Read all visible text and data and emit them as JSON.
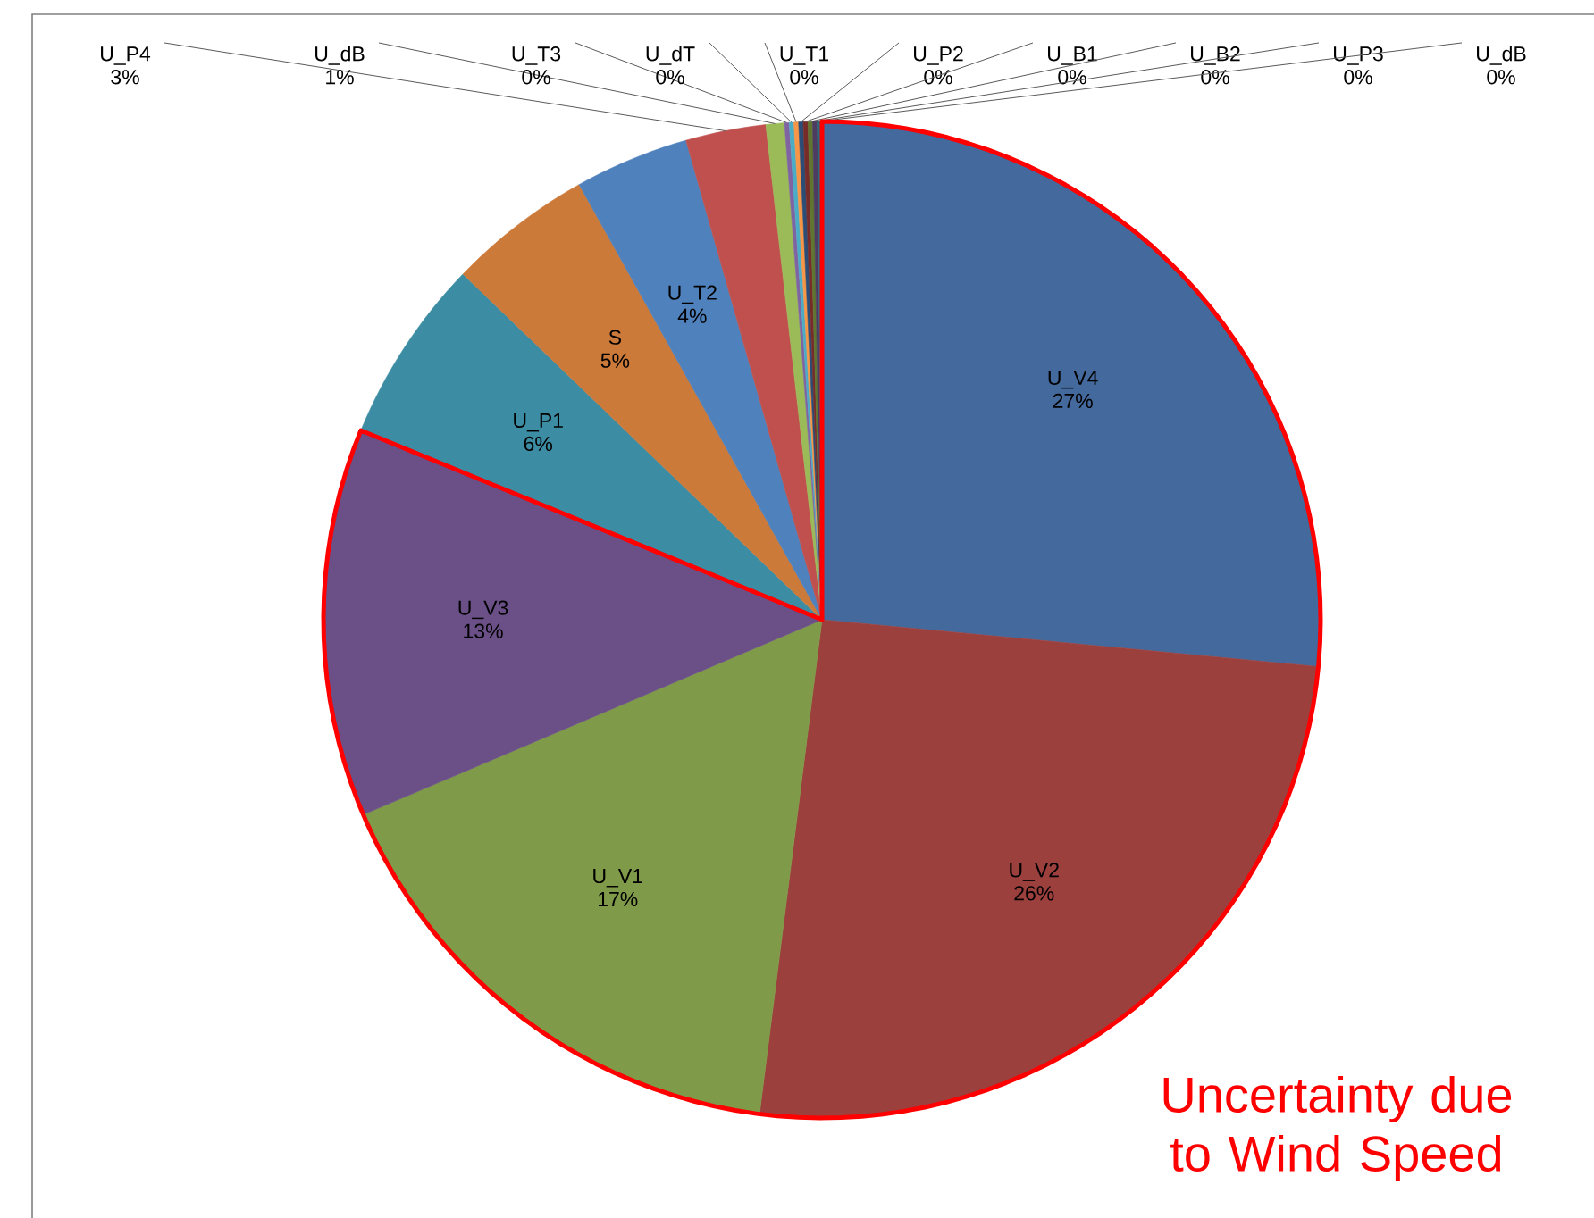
{
  "chart_data": {
    "type": "pie",
    "categories": [
      "U_V4",
      "U_V2",
      "U_V1",
      "U_V3",
      "U_P1",
      "S",
      "U_T2",
      "U_P4",
      "U_dB",
      "U_T3",
      "U_dT",
      "U_T1",
      "U_P2",
      "U_B1",
      "U_B2",
      "U_P3",
      "U_dB"
    ],
    "values": [
      26.5,
      25.5,
      16.6,
      12.6,
      6,
      4.7,
      3.7,
      2.6,
      0.6,
      0.15,
      0.15,
      0.15,
      0.15,
      0.15,
      0.15,
      0.15,
      0.15
    ],
    "value_labels": [
      "27%",
      "26%",
      "17%",
      "13%",
      "6%",
      "5%",
      "4%",
      "3%",
      "1%",
      "0%",
      "0%",
      "0%",
      "0%",
      "0%",
      "0%",
      "0%",
      "0%"
    ],
    "colors": [
      "#44699c",
      "#9c403e",
      "#7f9a48",
      "#6b5088",
      "#3c8da3",
      "#cc7a3a",
      "#4f81bd",
      "#c0504d",
      "#9bbb59",
      "#8064a2",
      "#4bacc6",
      "#f79646",
      "#2c4d75",
      "#772c2a",
      "#5f7530",
      "#4d3b62",
      "#276a7c"
    ],
    "annotations": [
      "Uncertainty due to Wind Speed"
    ]
  }
}
